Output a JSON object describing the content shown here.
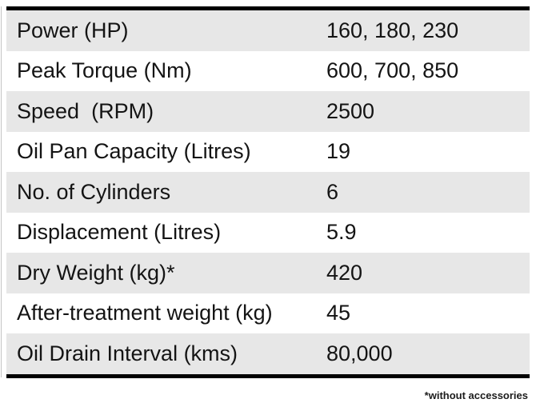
{
  "table": {
    "rows": [
      {
        "label": "Power (HP)",
        "value": "160, 180, 230"
      },
      {
        "label": "Peak Torque (Nm)",
        "value": "600, 700, 850"
      },
      {
        "label": "Speed  (RPM)",
        "value": "2500"
      },
      {
        "label": "Oil Pan Capacity (Litres)",
        "value": "19"
      },
      {
        "label": "No. of Cylinders",
        "value": "6"
      },
      {
        "label": "Displacement (Litres)",
        "value": "5.9"
      },
      {
        "label": "Dry Weight (kg)*",
        "value": "420"
      },
      {
        "label": "After-treatment weight (kg)",
        "value": "45"
      },
      {
        "label": "Oil Drain Interval (kms)",
        "value": "80,000"
      }
    ]
  },
  "footnote": "*without accessories",
  "colors": {
    "row_alt_background": "#e7e7e7",
    "row_background": "#ffffff",
    "table_border": "#000000",
    "text": "#141414"
  }
}
